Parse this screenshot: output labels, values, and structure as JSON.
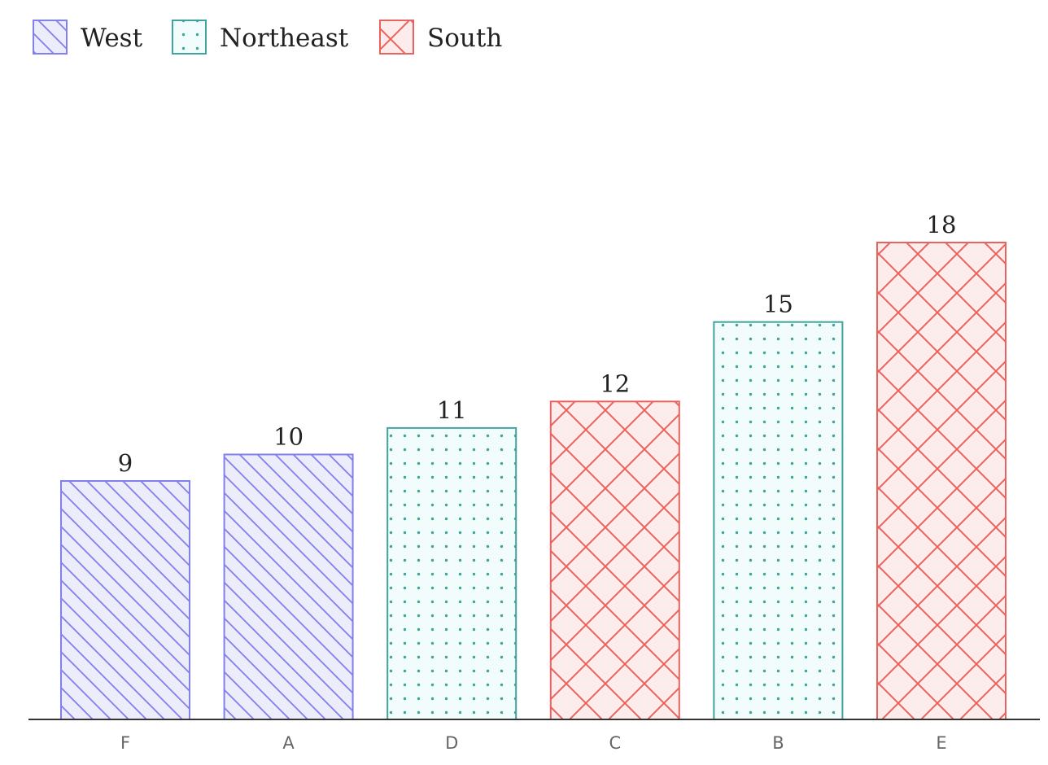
{
  "chart_data": {
    "type": "bar",
    "title": "",
    "xlabel": "",
    "ylabel": "",
    "categories": [
      "F",
      "A",
      "D",
      "C",
      "B",
      "E"
    ],
    "values": [
      9,
      10,
      11,
      12,
      15,
      18
    ],
    "groups": [
      "West",
      "West",
      "Northeast",
      "South",
      "Northeast",
      "South"
    ],
    "ylim": [
      0,
      18
    ],
    "grid": false,
    "legend_position": "top-left",
    "data_labels": true,
    "series": [
      {
        "name": "West",
        "pattern": "diagonal-lines",
        "stroke": "#8080ee",
        "fill": "#ececfb"
      },
      {
        "name": "Northeast",
        "pattern": "dots",
        "stroke": "#41a39e",
        "fill": "#f2fcfc"
      },
      {
        "name": "South",
        "pattern": "crosshatch",
        "stroke": "#e8625e",
        "fill": "#fdecec"
      }
    ]
  }
}
